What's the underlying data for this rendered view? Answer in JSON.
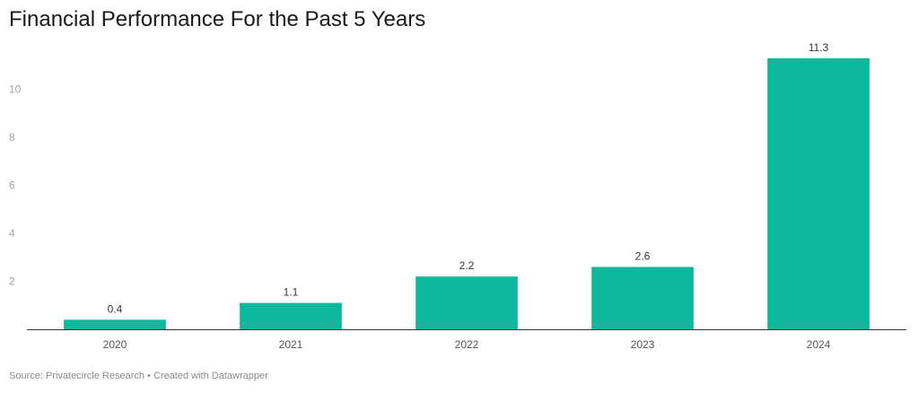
{
  "title": "Financial Performance For the Past 5 Years",
  "source": "Source: Privatecircle Research • Created with Datawrapper",
  "chart_data": {
    "type": "bar",
    "title": "Financial Performance For the Past 5 Years",
    "categories": [
      "2020",
      "2021",
      "2022",
      "2023",
      "2024"
    ],
    "values": [
      0.4,
      1.1,
      2.2,
      2.6,
      11.3
    ],
    "value_labels": [
      "0.4",
      "1.1",
      "2.2",
      "2.6",
      "11.3"
    ],
    "xlabel": "",
    "ylabel": "",
    "ylim": [
      0,
      11.3
    ],
    "yticks": [
      2,
      4,
      6,
      8,
      10
    ],
    "grid": false,
    "bar_color": "#0cb99d",
    "axis_color": "#333333"
  }
}
